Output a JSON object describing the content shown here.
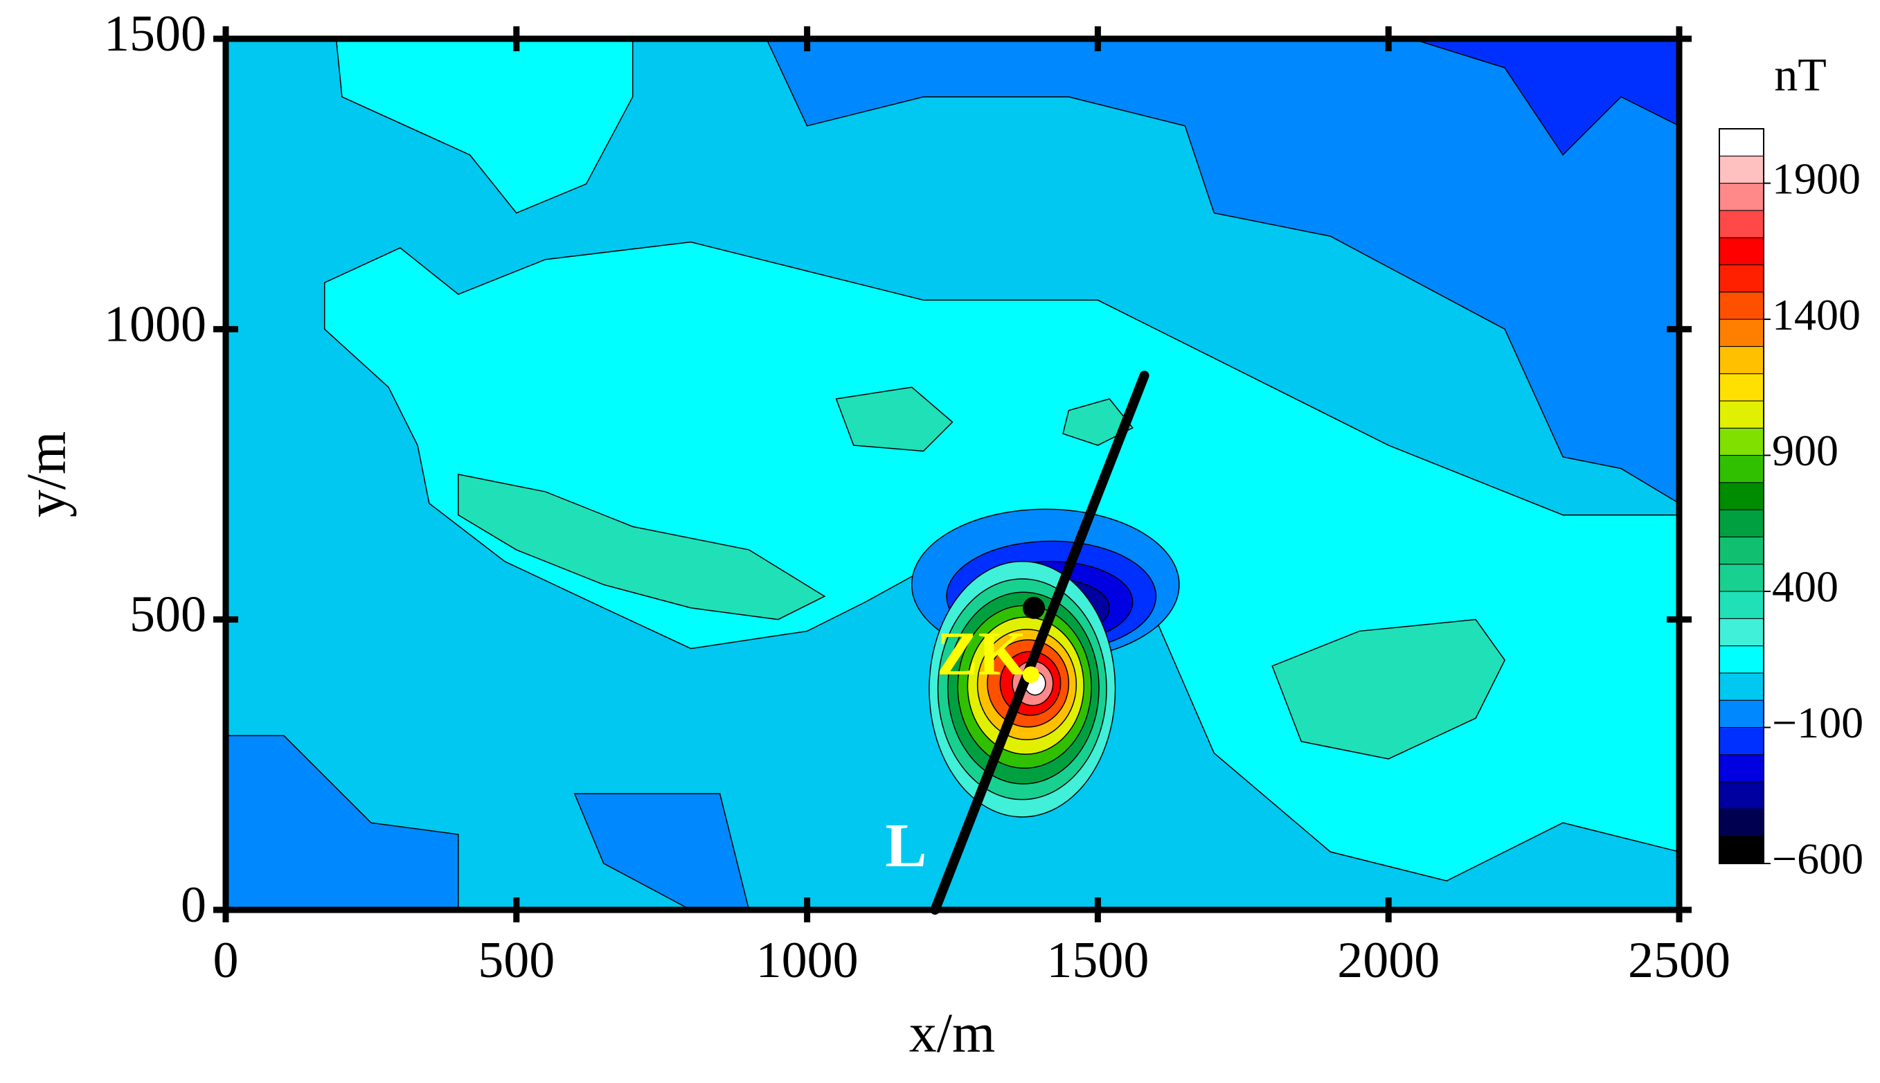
{
  "chart_data": {
    "type": "contour",
    "xlabel": "x/m",
    "ylabel": "y/m",
    "colorbar_label": "nT",
    "xlim": [
      0,
      2500
    ],
    "ylim": [
      0,
      1500
    ],
    "xticks": [
      0,
      500,
      1000,
      1500,
      2000,
      2500
    ],
    "yticks": [
      0,
      500,
      1000,
      1500
    ],
    "levels": [
      -600,
      -500,
      -400,
      -300,
      -200,
      -100,
      0,
      100,
      200,
      300,
      400,
      500,
      600,
      700,
      800,
      900,
      1000,
      1100,
      1200,
      1300,
      1400,
      1500,
      1600,
      1700,
      1800,
      1900,
      2000,
      2100
    ],
    "colors": [
      "#000000",
      "#000050",
      "#0000a0",
      "#0000e0",
      "#0030ff",
      "#0088ff",
      "#00c8f0",
      "#00ffff",
      "#40f0d8",
      "#20e0b8",
      "#18d090",
      "#10c070",
      "#00a040",
      "#008c00",
      "#30c000",
      "#80e000",
      "#e0f000",
      "#ffe000",
      "#ffc000",
      "#ff8000",
      "#ff5000",
      "#ff2000",
      "#ff0000",
      "#ff4848",
      "#ff8888",
      "#ffc0c0",
      "#ffffff"
    ],
    "colorbar_ticks": [
      {
        "value": -600,
        "label": "−600"
      },
      {
        "value": -100,
        "label": "−100"
      },
      400,
      900,
      1400,
      1900
    ],
    "regions": [
      {
        "value": 50,
        "points": [
          [
            0,
            0
          ],
          [
            2500,
            0
          ],
          [
            2500,
            1500
          ],
          [
            0,
            1500
          ]
        ]
      },
      {
        "value": 150,
        "points": [
          [
            190,
            1500
          ],
          [
            700,
            1500
          ],
          [
            700,
            1400
          ],
          [
            620,
            1250
          ],
          [
            500,
            1200
          ],
          [
            420,
            1300
          ],
          [
            200,
            1400
          ]
        ]
      },
      {
        "value": 150,
        "points": [
          [
            170,
            1080
          ],
          [
            300,
            1140
          ],
          [
            400,
            1060
          ],
          [
            550,
            1120
          ],
          [
            800,
            1150
          ],
          [
            1000,
            1100
          ],
          [
            1200,
            1050
          ],
          [
            1500,
            1050
          ],
          [
            1800,
            900
          ],
          [
            2000,
            800
          ],
          [
            2300,
            680
          ],
          [
            2500,
            680
          ],
          [
            2500,
            100
          ],
          [
            2300,
            150
          ],
          [
            2100,
            50
          ],
          [
            1900,
            100
          ],
          [
            1700,
            270
          ],
          [
            1600,
            500
          ],
          [
            1500,
            600
          ],
          [
            1300,
            640
          ],
          [
            1100,
            530
          ],
          [
            1000,
            480
          ],
          [
            800,
            450
          ],
          [
            650,
            520
          ],
          [
            480,
            600
          ],
          [
            350,
            700
          ],
          [
            330,
            800
          ],
          [
            280,
            900
          ],
          [
            170,
            1000
          ]
        ]
      },
      {
        "value": 350,
        "points": [
          [
            400,
            750
          ],
          [
            550,
            720
          ],
          [
            700,
            660
          ],
          [
            900,
            620
          ],
          [
            1030,
            540
          ],
          [
            950,
            500
          ],
          [
            800,
            520
          ],
          [
            650,
            560
          ],
          [
            500,
            620
          ],
          [
            400,
            680
          ]
        ]
      },
      {
        "value": 350,
        "points": [
          [
            1800,
            420
          ],
          [
            1950,
            480
          ],
          [
            2150,
            500
          ],
          [
            2200,
            430
          ],
          [
            2150,
            330
          ],
          [
            2000,
            260
          ],
          [
            1850,
            290
          ]
        ]
      },
      {
        "value": 350,
        "points": [
          [
            1050,
            880
          ],
          [
            1180,
            900
          ],
          [
            1250,
            840
          ],
          [
            1200,
            790
          ],
          [
            1080,
            800
          ]
        ]
      },
      {
        "value": 350,
        "points": [
          [
            1450,
            860
          ],
          [
            1520,
            880
          ],
          [
            1560,
            830
          ],
          [
            1500,
            800
          ],
          [
            1440,
            820
          ]
        ]
      },
      {
        "value": -50,
        "points": [
          [
            930,
            1500
          ],
          [
            2500,
            1500
          ],
          [
            2500,
            700
          ],
          [
            2400,
            760
          ],
          [
            2300,
            780
          ],
          [
            2200,
            1000
          ],
          [
            1900,
            1160
          ],
          [
            1700,
            1200
          ],
          [
            1650,
            1350
          ],
          [
            1450,
            1400
          ],
          [
            1200,
            1400
          ],
          [
            1000,
            1350
          ]
        ]
      },
      {
        "value": -150,
        "points": [
          [
            2040,
            1500
          ],
          [
            2500,
            1500
          ],
          [
            2500,
            1350
          ],
          [
            2400,
            1400
          ],
          [
            2300,
            1300
          ],
          [
            2200,
            1450
          ]
        ]
      },
      {
        "value": -50,
        "points": [
          [
            0,
            300
          ],
          [
            100,
            300
          ],
          [
            250,
            150
          ],
          [
            400,
            130
          ],
          [
            400,
            0
          ],
          [
            0,
            0
          ]
        ]
      },
      {
        "value": -50,
        "points": [
          [
            600,
            200
          ],
          [
            850,
            200
          ],
          [
            900,
            0
          ],
          [
            800,
            0
          ],
          [
            650,
            80
          ]
        ]
      }
    ],
    "anomalies": [
      {
        "x": 1410,
        "y": 560,
        "rx": 230,
        "ry": 130,
        "value": -50
      },
      {
        "x": 1420,
        "y": 540,
        "rx": 180,
        "ry": 95,
        "value": -150
      },
      {
        "x": 1420,
        "y": 530,
        "rx": 140,
        "ry": 70,
        "value": -250
      },
      {
        "x": 1420,
        "y": 520,
        "rx": 100,
        "ry": 50,
        "value": -350
      },
      {
        "x": 1410,
        "y": 515,
        "rx": 60,
        "ry": 30,
        "value": -450
      },
      {
        "x": 1370,
        "y": 380,
        "rx": 160,
        "ry": 220,
        "value": 250
      },
      {
        "x": 1370,
        "y": 380,
        "rx": 145,
        "ry": 190,
        "value": 450
      },
      {
        "x": 1372,
        "y": 382,
        "rx": 130,
        "ry": 165,
        "value": 650
      },
      {
        "x": 1374,
        "y": 384,
        "rx": 115,
        "ry": 140,
        "value": 850
      },
      {
        "x": 1376,
        "y": 386,
        "rx": 100,
        "ry": 118,
        "value": 1050
      },
      {
        "x": 1378,
        "y": 388,
        "rx": 85,
        "ry": 95,
        "value": 1250
      },
      {
        "x": 1380,
        "y": 390,
        "rx": 70,
        "ry": 75,
        "value": 1450
      },
      {
        "x": 1384,
        "y": 390,
        "rx": 52,
        "ry": 55,
        "value": 1650
      },
      {
        "x": 1388,
        "y": 390,
        "rx": 35,
        "ry": 38,
        "value": 1850
      },
      {
        "x": 1392,
        "y": 390,
        "rx": 18,
        "ry": 20,
        "value": 2050
      }
    ],
    "profile": {
      "label": "L",
      "x": [
        1220,
        1580
      ],
      "y": [
        0,
        920
      ],
      "label_x": 1170,
      "label_y": 100
    },
    "borehole": {
      "label": "ZK",
      "x": 1385,
      "y": 405,
      "label_x": 1300,
      "label_y": 430
    },
    "point": {
      "x": 1390,
      "y": 520
    }
  }
}
